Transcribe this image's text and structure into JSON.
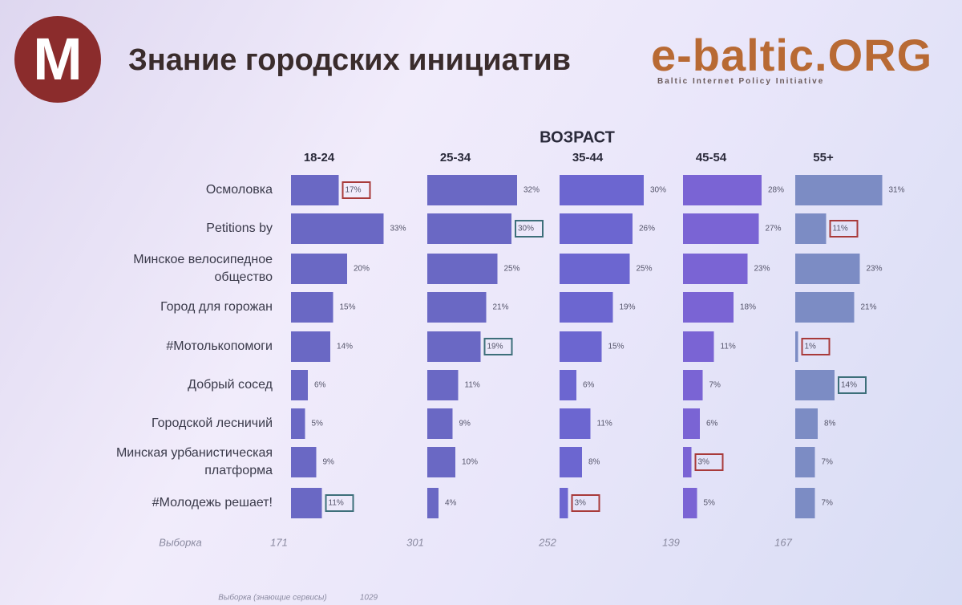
{
  "chart_data": {
    "type": "bar",
    "orientation": "horizontal",
    "title": "Знание городских инициатив",
    "logo_letter": "M",
    "brand": "e-baltic.ORG",
    "brand_tagline": "Baltic Internet Policy Initiative",
    "group_label": "ВОЗРАСТ",
    "categories": [
      "Осмоловка",
      "Petitions by",
      "Минское велосипедное общество",
      "Город для горожан",
      "#Мотолькопомоги",
      "Добрый сосед",
      "Городской лесничий",
      "Минская урбанистическая платформа",
      "#Молодежь решает!"
    ],
    "series": [
      {
        "name": "18-24",
        "color": "#6a68c4",
        "values": [
          17,
          33,
          20,
          15,
          14,
          6,
          5,
          9,
          11
        ],
        "value_labels": [
          "17%",
          "33%",
          "20%",
          "15%",
          "14%",
          "6%",
          "5%",
          "9%",
          "11%"
        ],
        "boxes": [
          {
            "index": 0,
            "color": "#a83a3a"
          },
          {
            "index": 8,
            "color": "#3d6f7a"
          }
        ],
        "sample": 171
      },
      {
        "name": "25-34",
        "color": "#6a68c4",
        "values": [
          32,
          30,
          25,
          21,
          19,
          11,
          9,
          10,
          4
        ],
        "value_labels": [
          "32%",
          "30%",
          "25%",
          "21%",
          "19%",
          "11%",
          "9%",
          "10%",
          "4%"
        ],
        "boxes": [
          {
            "index": 1,
            "color": "#3d6f7a"
          },
          {
            "index": 4,
            "color": "#3d6f7a"
          }
        ],
        "sample": 301
      },
      {
        "name": "35-44",
        "color": "#6c66d0",
        "values": [
          30,
          26,
          25,
          19,
          15,
          6,
          11,
          8,
          3
        ],
        "value_labels": [
          "30%",
          "26%",
          "25%",
          "19%",
          "15%",
          "6%",
          "11%",
          "8%",
          "3%"
        ],
        "boxes": [
          {
            "index": 8,
            "color": "#a83a3a"
          }
        ],
        "sample": 252
      },
      {
        "name": "45-54",
        "color": "#7a64d4",
        "values": [
          28,
          27,
          23,
          18,
          11,
          7,
          6,
          3,
          5
        ],
        "value_labels": [
          "28%",
          "27%",
          "23%",
          "18%",
          "11%",
          "7%",
          "6%",
          "3%",
          "5%"
        ],
        "boxes": [
          {
            "index": 7,
            "color": "#a83a3a"
          }
        ],
        "sample": 139
      },
      {
        "name": "55+",
        "color": "#7c8cc4",
        "values": [
          31,
          11,
          23,
          21,
          1,
          14,
          8,
          7,
          7
        ],
        "value_labels": [
          "31%",
          "11%",
          "23%",
          "21%",
          "1%",
          "14%",
          "8%",
          "7%",
          "7%"
        ],
        "boxes": [
          {
            "index": 1,
            "color": "#a83a3a"
          },
          {
            "index": 4,
            "color": "#a83a3a"
          },
          {
            "index": 5,
            "color": "#3d6f7a"
          }
        ],
        "sample": 167
      }
    ],
    "sample_label": "Выборка",
    "footer_label": "Выборка (знающие сервисы)",
    "footer_value": 1029
  }
}
